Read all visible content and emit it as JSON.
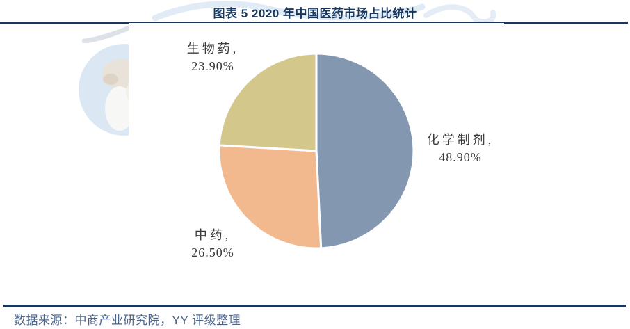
{
  "figure": {
    "title": "图表 5 2020 年中国医药市场占比统计",
    "source_note": "数据来源：中商产业研究院，YY 评级整理"
  },
  "colors": {
    "accent": "#17365D",
    "footer_text": "#4A648C",
    "label_text": "#3B3B3B",
    "slice_border": "#FFFFFF",
    "watermark_blue": "#DBE8F4",
    "watermark_stroke": "#C9DBEE"
  },
  "chart_data": {
    "type": "pie",
    "title": "图表 5 2020 年中国医药市场占比统计",
    "unit": "%",
    "start_angle_deg": 0,
    "direction": "clockwise",
    "legend": "none",
    "labels_outside": true,
    "slices": [
      {
        "name": "化学制剂",
        "value": 48.9,
        "label": "化学制剂,",
        "pct_label": "48.90%",
        "color": "#8497B1"
      },
      {
        "name": "中药",
        "value": 26.5,
        "label": "中药,",
        "pct_label": "26.50%",
        "color": "#F3B98E"
      },
      {
        "name": "生物药",
        "value": 23.9,
        "label": "生物药,",
        "pct_label": "23.90%",
        "color": "#D4C78C"
      }
    ]
  }
}
